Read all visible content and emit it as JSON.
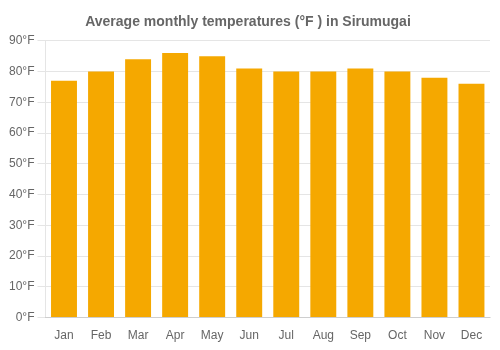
{
  "chart_data": {
    "type": "bar",
    "title": "Average monthly temperatures (°F ) in Sirumugai",
    "categories": [
      "Jan",
      "Feb",
      "Mar",
      "Apr",
      "May",
      "Jun",
      "Jul",
      "Aug",
      "Sep",
      "Oct",
      "Nov",
      "Dec"
    ],
    "values": [
      77,
      80,
      84,
      86,
      85,
      81,
      80,
      80,
      81,
      80,
      78,
      76
    ],
    "color": "#F5A800",
    "ylim": [
      0,
      90
    ],
    "yticks": [
      {
        "value": 0,
        "label": "0°F"
      },
      {
        "value": 10,
        "label": "10°F"
      },
      {
        "value": 20,
        "label": "20°F"
      },
      {
        "value": 30,
        "label": "30°F"
      },
      {
        "value": 40,
        "label": "40°F"
      },
      {
        "value": 50,
        "label": "50°F"
      },
      {
        "value": 60,
        "label": "60°F"
      },
      {
        "value": 70,
        "label": "70°F"
      },
      {
        "value": 80,
        "label": "80°F"
      },
      {
        "value": 90,
        "label": "90°F"
      }
    ],
    "grid": true
  }
}
